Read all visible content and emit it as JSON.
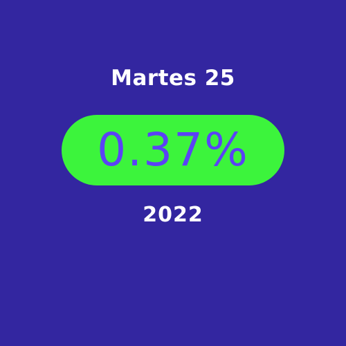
{
  "card": {
    "day": "Martes 25",
    "value": "0.37%",
    "year": "2022"
  },
  "colors": {
    "background": "#3326a0",
    "pill": "#3cf43c",
    "value_text": "#5b42f5"
  }
}
